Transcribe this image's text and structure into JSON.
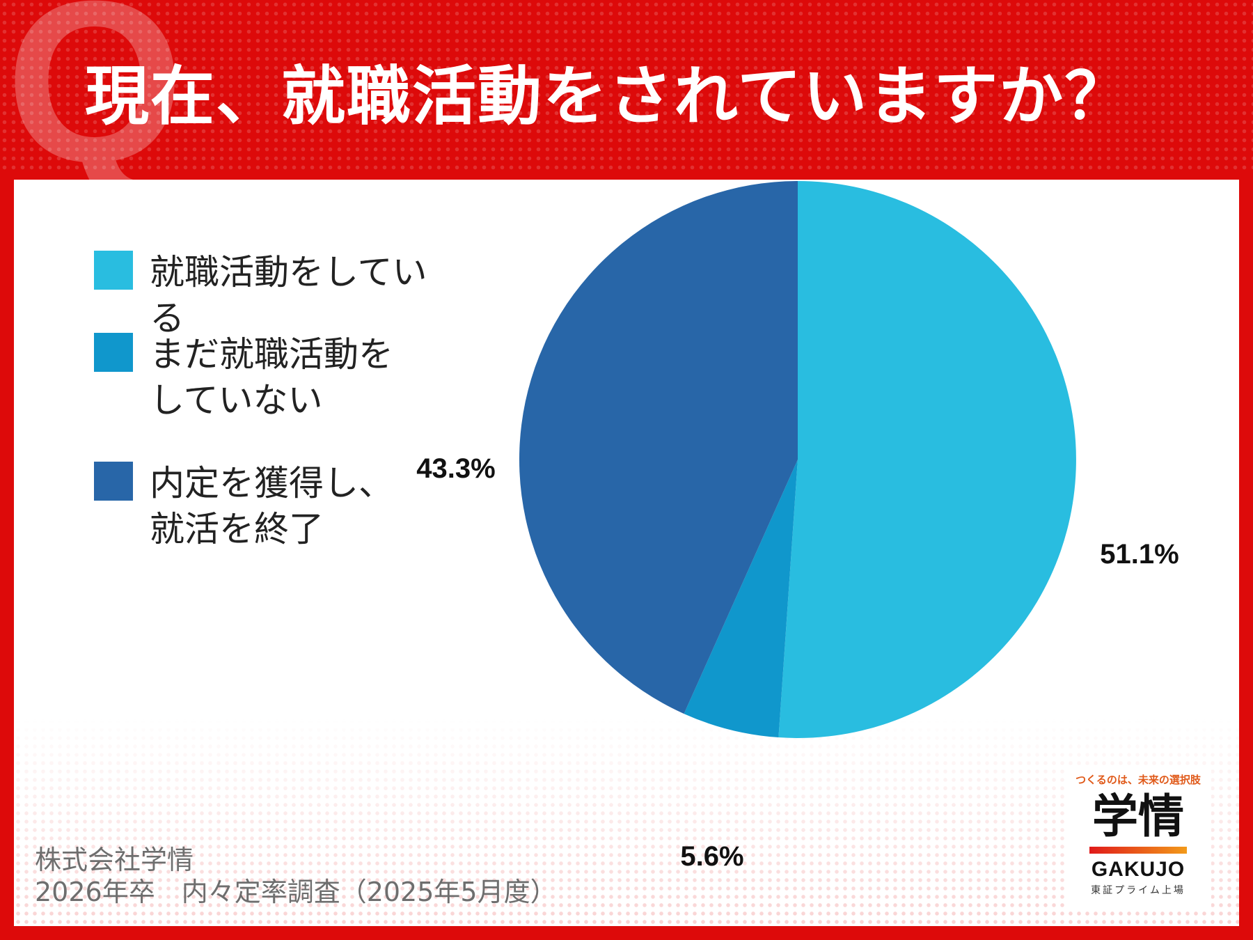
{
  "title": "現在、就職活動をされていますか？",
  "chart_data": {
    "type": "pie",
    "slices": [
      {
        "label": "就職活動をしている",
        "value": 51.1,
        "value_label": "51.1%",
        "color": "#29bde0"
      },
      {
        "label": "まだ就職活動を\nしていない",
        "value": 5.6,
        "value_label": "5.6%",
        "color": "#1097cc"
      },
      {
        "label": "内定を獲得し、\n就活を終了",
        "value": 43.3,
        "value_label": "43.3%",
        "color": "#2866a8"
      }
    ]
  },
  "source": {
    "company": "株式会社学情",
    "survey": "2026年卒　内々定率調査（2025年5月度）"
  },
  "logo": {
    "tagline": "つくるのは、未来の選択肢",
    "name": "学情",
    "name_en": "GAKUJO",
    "sub": "東証プライム上場"
  },
  "colors": {
    "background": "#dd0a0a",
    "panel": "#ffffff"
  }
}
